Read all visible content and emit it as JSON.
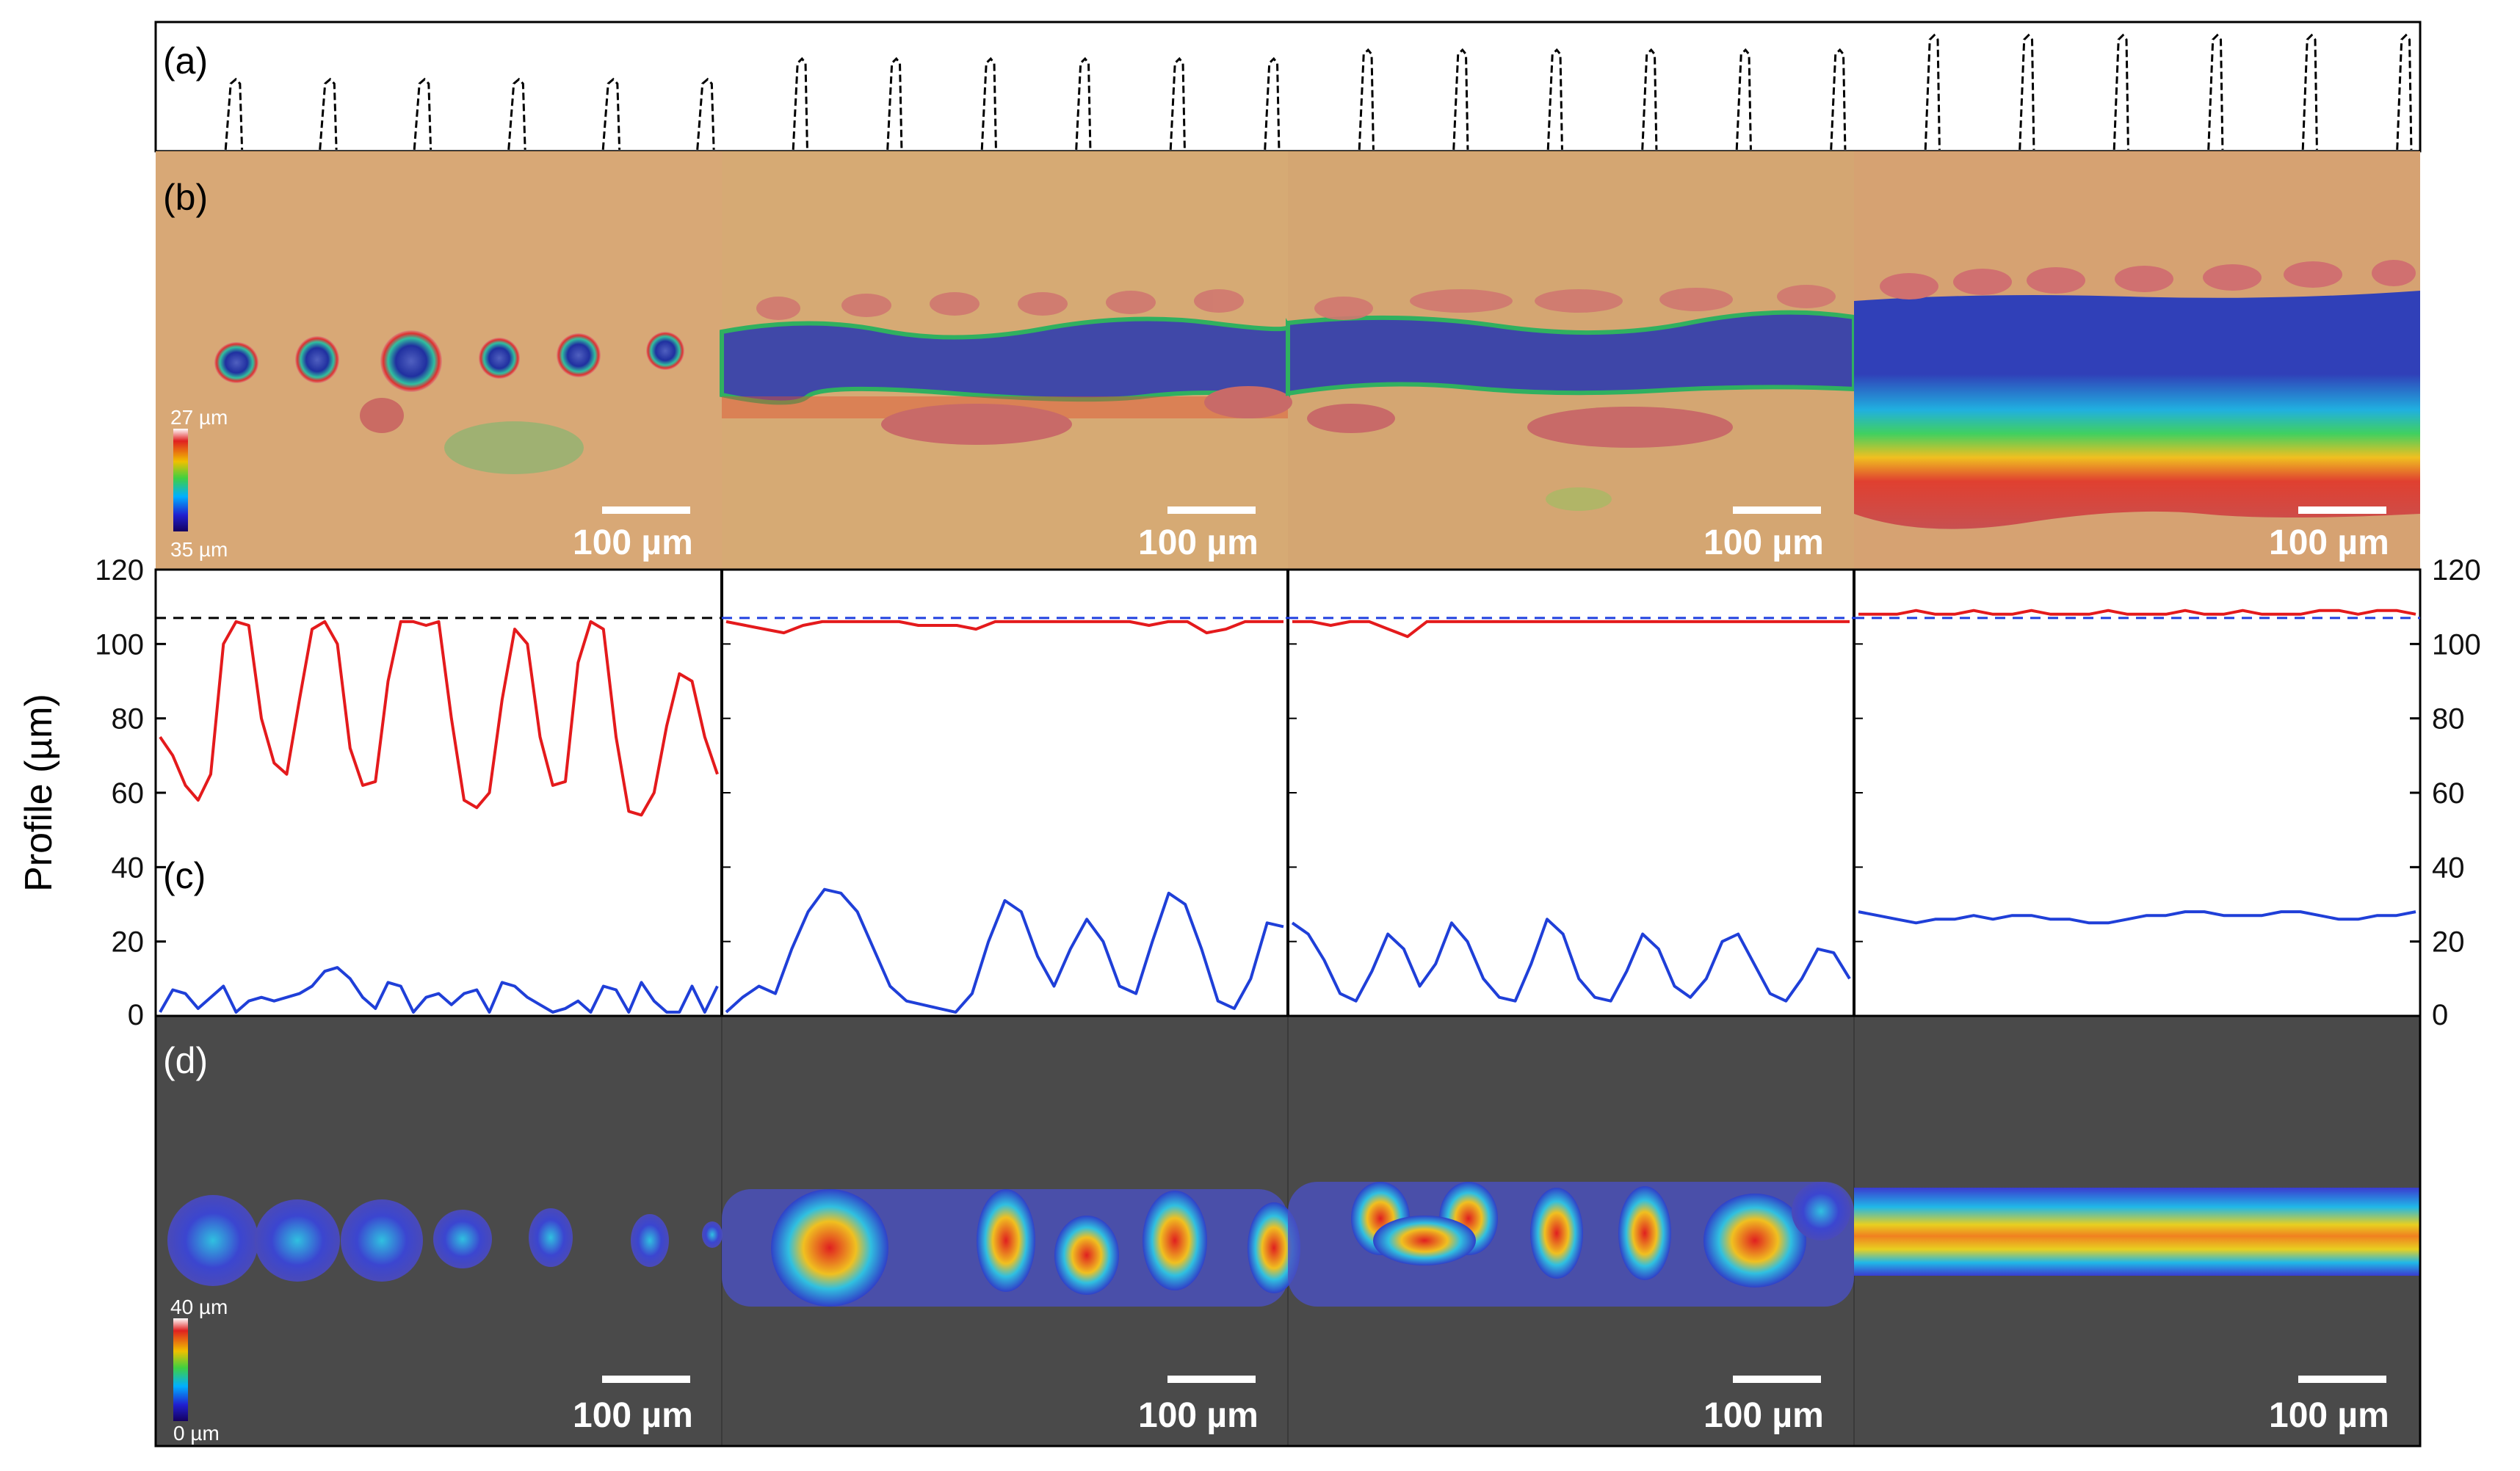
{
  "panel_labels": {
    "a": "(a)",
    "b": "(b)",
    "c": "(c)",
    "d": "(d)"
  },
  "scale_bar_label": "100 µm",
  "colorbar_b": {
    "top_label": "27 µm",
    "bottom_label": "35 µm"
  },
  "colorbar_d": {
    "top_label": "40 µm",
    "bottom_label": "0 µm"
  },
  "chart_data": {
    "type": "line",
    "ylabel": "Profile (µm)",
    "ylim": [
      0,
      120
    ],
    "y_ticks": [
      0,
      20,
      40,
      60,
      80,
      100,
      120
    ],
    "reference_line": 107,
    "panels": [
      {
        "series": [
          {
            "color": "#e41a1c",
            "values": [
              75,
              70,
              62,
              58,
              65,
              100,
              106,
              105,
              80,
              68,
              65,
              85,
              104,
              106,
              100,
              72,
              62,
              63,
              90,
              106,
              106,
              105,
              106,
              80,
              58,
              56,
              60,
              85,
              104,
              100,
              75,
              62,
              63,
              95,
              106,
              104,
              75,
              55,
              54,
              60,
              78,
              92,
              90,
              75,
              65
            ]
          },
          {
            "color": "#1f3fd8",
            "values": [
              1,
              7,
              6,
              2,
              5,
              8,
              1,
              4,
              5,
              4,
              5,
              6,
              8,
              12,
              13,
              10,
              5,
              2,
              9,
              8,
              1,
              5,
              6,
              3,
              6,
              7,
              1,
              9,
              8,
              5,
              3,
              1,
              2,
              4,
              1,
              8,
              7,
              1,
              9,
              4,
              1,
              1,
              8,
              1,
              8
            ]
          }
        ]
      },
      {
        "series": [
          {
            "color": "#e41a1c",
            "values": [
              106,
              105,
              104,
              103,
              105,
              106,
              106,
              106,
              106,
              106,
              105,
              105,
              105,
              104,
              106,
              106,
              106,
              106,
              106,
              106,
              106,
              106,
              105,
              106,
              106,
              103,
              104,
              106,
              106,
              106
            ]
          },
          {
            "color": "#1f3fd8",
            "values": [
              1,
              5,
              8,
              6,
              18,
              28,
              34,
              33,
              28,
              18,
              8,
              4,
              3,
              2,
              1,
              6,
              20,
              31,
              28,
              16,
              8,
              18,
              26,
              20,
              8,
              6,
              20,
              33,
              30,
              18,
              4,
              2,
              10,
              25,
              24
            ]
          }
        ]
      },
      {
        "series": [
          {
            "color": "#e41a1c",
            "values": [
              106,
              106,
              105,
              106,
              106,
              104,
              102,
              106,
              106,
              106,
              106,
              106,
              106,
              106,
              106,
              106,
              106,
              106,
              106,
              106,
              106,
              106,
              106,
              106,
              106,
              106,
              106,
              106,
              106,
              106
            ]
          },
          {
            "color": "#1f3fd8",
            "values": [
              25,
              22,
              15,
              6,
              4,
              12,
              22,
              18,
              8,
              14,
              25,
              20,
              10,
              5,
              4,
              14,
              26,
              22,
              10,
              5,
              4,
              12,
              22,
              18,
              8,
              5,
              10,
              20,
              22,
              14,
              6,
              4,
              10,
              18,
              17,
              10
            ]
          }
        ]
      },
      {
        "series": [
          {
            "color": "#e41a1c",
            "values": [
              108,
              108,
              108,
              109,
              108,
              108,
              109,
              108,
              108,
              109,
              108,
              108,
              108,
              109,
              108,
              108,
              108,
              109,
              108,
              108,
              109,
              108,
              108,
              108,
              109,
              109,
              108,
              109,
              109,
              108
            ]
          },
          {
            "color": "#1f3fd8",
            "values": [
              28,
              27,
              26,
              25,
              26,
              26,
              27,
              26,
              27,
              27,
              26,
              26,
              25,
              25,
              26,
              27,
              27,
              28,
              28,
              27,
              27,
              27,
              28,
              28,
              27,
              26,
              26,
              27,
              27,
              28
            ]
          }
        ]
      }
    ]
  }
}
